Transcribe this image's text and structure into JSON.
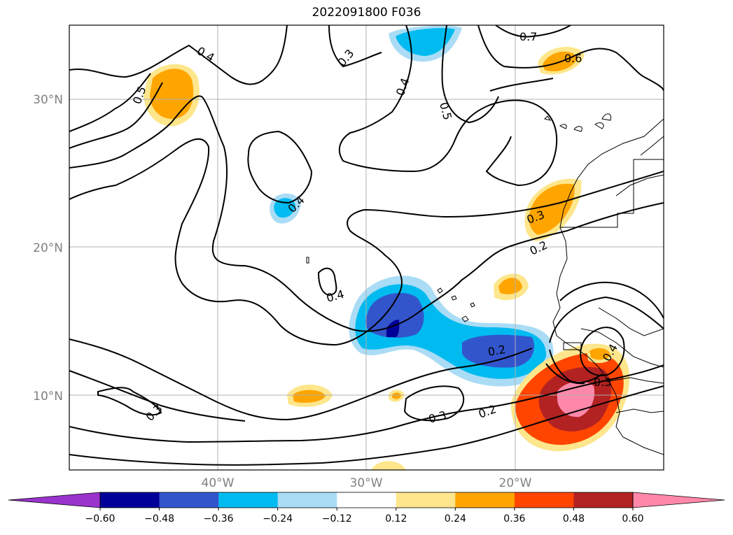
{
  "title": "2022091800 F036",
  "map": {
    "lat_labels": [
      "30°N",
      "20°N",
      "10°N"
    ],
    "lon_labels": [
      "40°W",
      "30°W",
      "20°W"
    ],
    "contour_labels": [
      "0.4",
      "0.5",
      "0.3",
      "0.4",
      "0.5",
      "0.7",
      "0.6",
      "0.4",
      "0.3",
      "0.2",
      "0.4",
      "0.2",
      "0.4",
      "0.3",
      "0.3",
      "0.3",
      "0.2"
    ],
    "colors": {
      "purple": "#9933cc",
      "navy": "#000099",
      "blue": "#3355cc",
      "cyan": "#00bbf0",
      "lightblue": "#aadcf5",
      "white": "#ffffff",
      "lightyellow": "#fde68b",
      "orange": "#ffa500",
      "orangered": "#ff4500",
      "firebrick": "#b22222",
      "pink": "#ff88aa"
    }
  },
  "colorbar": {
    "ticks": [
      "−0.60",
      "−0.48",
      "−0.36",
      "−0.24",
      "−0.12",
      "0.12",
      "0.24",
      "0.36",
      "0.48",
      "0.60"
    ],
    "bins": [
      "purple",
      "navy",
      "blue",
      "cyan",
      "lightblue",
      "white",
      "lightyellow",
      "orange",
      "orangered",
      "firebrick",
      "pink"
    ]
  }
}
